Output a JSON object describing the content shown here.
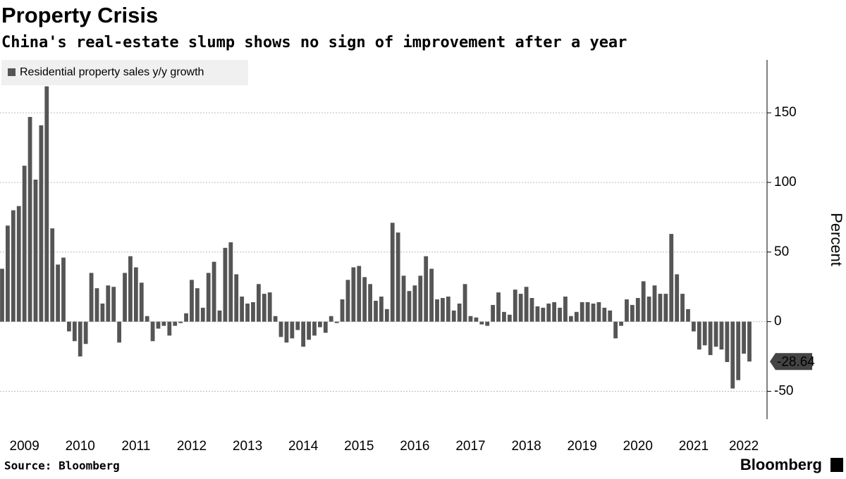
{
  "chart_data": {
    "type": "bar",
    "title": "Property Crisis",
    "subtitle": "China's real-estate slump shows no sign of improvement after a year",
    "source": "Source: Bloomberg",
    "brand": "Bloomberg",
    "y_axis_label": "Percent",
    "ylim": [
      -70,
      188
    ],
    "yticks": [
      -50,
      0,
      50,
      100,
      150
    ],
    "grid": true,
    "categories": [
      null,
      null,
      null,
      null,
      "2009",
      null,
      null,
      null,
      null,
      null,
      null,
      null,
      null,
      null,
      "2010",
      null,
      null,
      null,
      null,
      null,
      null,
      null,
      null,
      null,
      "2011",
      null,
      null,
      null,
      null,
      null,
      null,
      null,
      null,
      null,
      "2012",
      null,
      null,
      null,
      null,
      null,
      null,
      null,
      null,
      null,
      "2013",
      null,
      null,
      null,
      null,
      null,
      null,
      null,
      null,
      null,
      "2014",
      null,
      null,
      null,
      null,
      null,
      null,
      null,
      null,
      null,
      "2015",
      null,
      null,
      null,
      null,
      null,
      null,
      null,
      null,
      null,
      "2016",
      null,
      null,
      null,
      null,
      null,
      null,
      null,
      null,
      null,
      "2017",
      null,
      null,
      null,
      null,
      null,
      null,
      null,
      null,
      null,
      "2018",
      null,
      null,
      null,
      null,
      null,
      null,
      null,
      null,
      null,
      "2019",
      null,
      null,
      null,
      null,
      null,
      null,
      null,
      null,
      null,
      "2020",
      null,
      null,
      null,
      null,
      null,
      null,
      null,
      null,
      null,
      "2021",
      null,
      null,
      null,
      null,
      null,
      null,
      null,
      null,
      "2022",
      null
    ],
    "series": [
      {
        "name": "Residential property sales y/y growth",
        "color": "#555555",
        "values": [
          38,
          69,
          80,
          83,
          112,
          147,
          102,
          141,
          169,
          67,
          41,
          46,
          -7,
          -14,
          -25,
          -16,
          35,
          24,
          13,
          26,
          25,
          -15,
          35,
          47,
          39,
          28,
          4,
          -14,
          -5,
          -3,
          -10,
          -3,
          -1,
          6,
          30,
          24,
          10,
          35,
          43,
          8,
          53,
          57,
          34,
          18,
          13,
          14,
          27,
          20,
          21,
          4,
          -11,
          -15,
          -12,
          -6,
          -18,
          -13,
          -10,
          -4,
          -8,
          4,
          -1,
          16,
          30,
          39,
          40,
          32,
          27,
          15,
          18,
          9,
          71,
          64,
          33,
          22,
          26,
          33,
          47,
          38,
          16,
          17,
          18,
          8,
          13,
          27,
          4,
          3,
          -2,
          -3,
          12,
          21,
          7,
          5,
          23,
          20,
          25,
          17,
          11,
          10,
          13,
          14,
          10,
          18,
          4,
          7,
          14,
          14,
          13,
          14,
          10,
          8,
          -12,
          -3,
          16,
          12,
          17,
          29,
          18,
          26,
          20,
          20,
          63,
          34,
          20,
          9,
          -7,
          -20,
          -17,
          -24,
          -18,
          -20,
          -29,
          -48,
          -42,
          -23,
          -28.64
        ]
      }
    ]
  }
}
